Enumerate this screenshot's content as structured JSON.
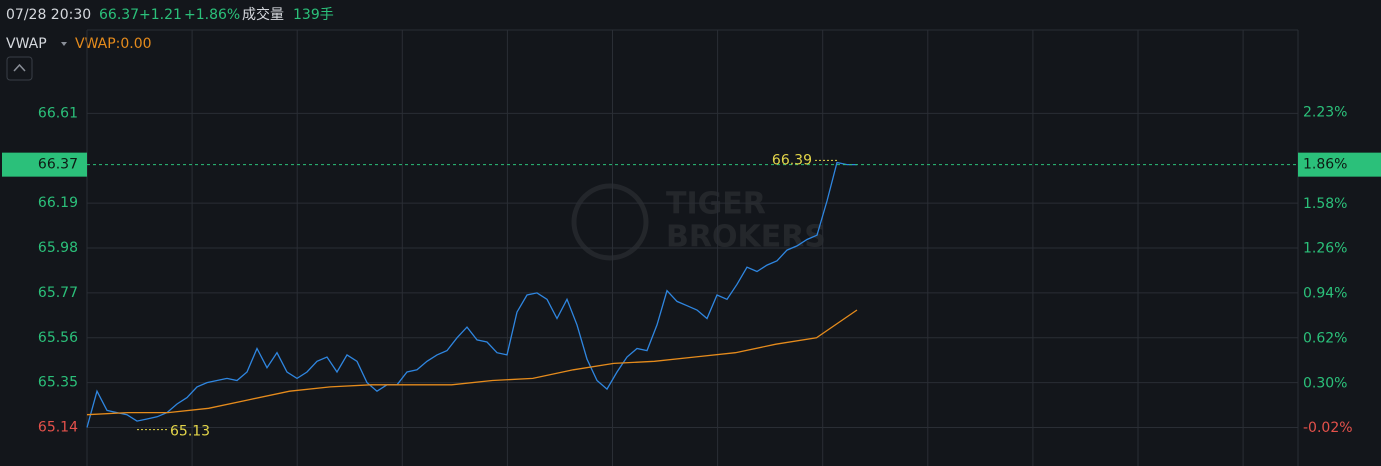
{
  "chart_data": {
    "type": "line",
    "header": {
      "datetime": "07/28 20:30",
      "price": "66.37",
      "change": "+1.21",
      "change_pct": "+1.86%",
      "volume_label": "成交量",
      "volume": "139手"
    },
    "indicator": "VWAP",
    "indicator_value": "VWAP:0.00",
    "watermark": [
      "TIGER",
      "BROKERS"
    ],
    "series": [
      {
        "name": "Price",
        "color": "#2f86e0",
        "values": [
          65.14,
          65.31,
          65.22,
          65.21,
          65.2,
          65.17,
          65.18,
          65.19,
          65.21,
          65.25,
          65.28,
          65.33,
          65.35,
          65.36,
          65.37,
          65.36,
          65.4,
          65.51,
          65.42,
          65.49,
          65.4,
          65.37,
          65.4,
          65.45,
          65.47,
          65.4,
          65.48,
          65.45,
          65.35,
          65.31,
          65.34,
          65.34,
          65.4,
          65.41,
          65.45,
          65.48,
          65.5,
          65.56,
          65.61,
          65.55,
          65.54,
          65.49,
          65.48,
          65.68,
          65.76,
          65.77,
          65.74,
          65.65,
          65.74,
          65.62,
          65.46,
          65.36,
          65.32,
          65.4,
          65.47,
          65.51,
          65.5,
          65.62,
          65.78,
          65.73,
          65.71,
          65.69,
          65.65,
          65.76,
          65.74,
          65.81,
          65.89,
          65.87,
          65.9,
          65.92,
          65.97,
          65.99,
          66.02,
          66.04,
          66.2,
          66.38,
          66.37,
          66.37
        ]
      },
      {
        "name": "VWAP",
        "color": "#e58b1c",
        "values": [
          65.2,
          65.21,
          65.21,
          65.23,
          65.27,
          65.31,
          65.33,
          65.34,
          65.34,
          65.34,
          65.36,
          65.37,
          65.41,
          65.44,
          65.45,
          65.47,
          65.49,
          65.53,
          65.56,
          65.69
        ]
      }
    ],
    "ylim": [
      64.96,
      67.0
    ],
    "yticks": [
      66.61,
      66.19,
      65.98,
      65.77,
      65.56,
      65.35,
      65.14
    ],
    "y2lim": [
      -0.29,
      2.82
    ],
    "y2ticks": [
      {
        "value": 2.23,
        "label": "2.23%"
      },
      {
        "value": 1.58,
        "label": "1.58%"
      },
      {
        "value": 1.26,
        "label": "1.26%"
      },
      {
        "value": 0.94,
        "label": "0.94%"
      },
      {
        "value": 0.62,
        "label": "0.62%"
      },
      {
        "value": 0.3,
        "label": "0.30%"
      },
      {
        "value": -0.02,
        "label": "-0.02%"
      }
    ],
    "last_price": 66.37,
    "last_change": {
      "value": 1.86,
      "label": "1.86%"
    },
    "high": 66.39,
    "low": 65.13,
    "grid": true,
    "up_color": "#2bc07a",
    "down_color": "#e4514b"
  }
}
